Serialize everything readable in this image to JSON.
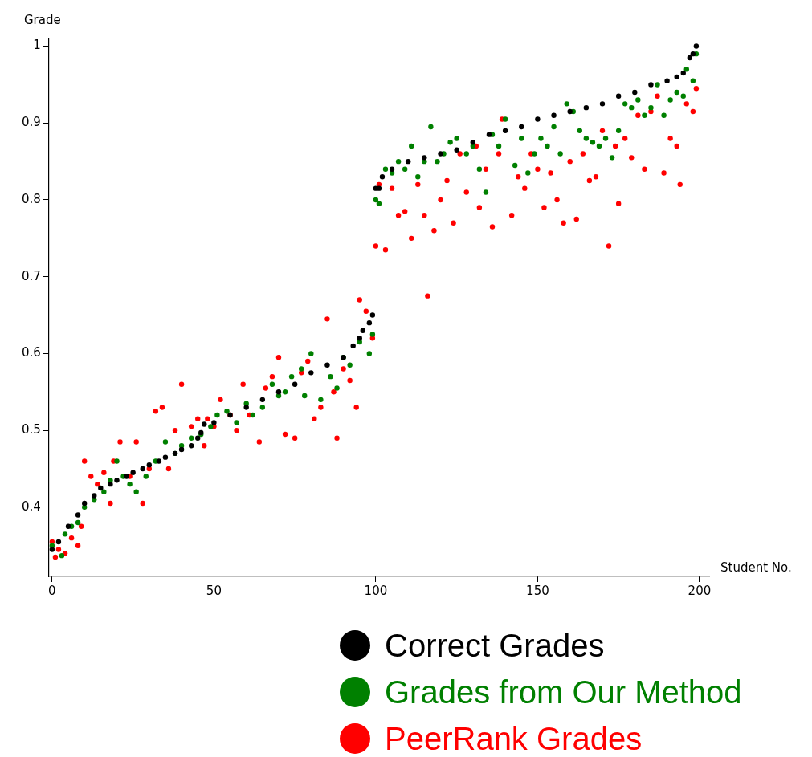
{
  "chart_data": {
    "type": "scatter",
    "xlabel": "Student No.",
    "ylabel": "Grade",
    "xlim": [
      -1,
      203
    ],
    "ylim": [
      0.31,
      1.01
    ],
    "xticks": [
      0,
      50,
      100,
      150,
      200
    ],
    "yticks": [
      0.4,
      0.5,
      0.6,
      0.7,
      0.8,
      0.9,
      1
    ],
    "grid": false,
    "legend": "bottom right",
    "marker": "circle",
    "series": [
      {
        "name": "Correct Grades",
        "color": "#000000",
        "x": [
          0,
          2,
          5,
          8,
          10,
          13,
          15,
          18,
          20,
          23,
          25,
          28,
          30,
          33,
          35,
          38,
          40,
          43,
          45,
          46,
          47,
          50,
          55,
          60,
          65,
          70,
          75,
          80,
          85,
          90,
          93,
          95,
          96,
          98,
          99,
          100,
          101,
          102,
          105,
          110,
          115,
          120,
          125,
          130,
          135,
          140,
          145,
          150,
          155,
          160,
          165,
          170,
          175,
          180,
          185,
          190,
          193,
          195,
          197,
          198,
          199
        ],
        "values": [
          0.345,
          0.355,
          0.375,
          0.39,
          0.405,
          0.415,
          0.425,
          0.43,
          0.435,
          0.44,
          0.445,
          0.45,
          0.455,
          0.46,
          0.465,
          0.47,
          0.475,
          0.48,
          0.49,
          0.497,
          0.508,
          0.51,
          0.52,
          0.53,
          0.54,
          0.55,
          0.56,
          0.575,
          0.585,
          0.595,
          0.61,
          0.62,
          0.63,
          0.64,
          0.65,
          0.815,
          0.815,
          0.83,
          0.84,
          0.85,
          0.855,
          0.86,
          0.865,
          0.875,
          0.885,
          0.89,
          0.895,
          0.905,
          0.91,
          0.915,
          0.92,
          0.925,
          0.935,
          0.94,
          0.95,
          0.955,
          0.96,
          0.965,
          0.985,
          0.99,
          1.0
        ]
      },
      {
        "name": "Grades from Our Method",
        "color": "#008000",
        "x": [
          0,
          3,
          4,
          6,
          8,
          10,
          13,
          16,
          18,
          20,
          22,
          24,
          26,
          29,
          32,
          35,
          38,
          40,
          43,
          46,
          49,
          51,
          54,
          57,
          60,
          62,
          65,
          68,
          70,
          72,
          74,
          77,
          78,
          80,
          83,
          86,
          88,
          90,
          92,
          95,
          98,
          99,
          100,
          101,
          103,
          105,
          107,
          109,
          111,
          113,
          115,
          117,
          119,
          121,
          123,
          125,
          128,
          130,
          132,
          134,
          136,
          138,
          140,
          143,
          145,
          147,
          149,
          151,
          153,
          155,
          157,
          159,
          161,
          163,
          165,
          167,
          169,
          171,
          173,
          175,
          177,
          179,
          181,
          183,
          185,
          187,
          189,
          191,
          193,
          195,
          196,
          198,
          199
        ],
        "values": [
          0.35,
          0.337,
          0.365,
          0.375,
          0.38,
          0.4,
          0.41,
          0.42,
          0.435,
          0.46,
          0.44,
          0.43,
          0.42,
          0.44,
          0.46,
          0.485,
          0.47,
          0.48,
          0.49,
          0.495,
          0.505,
          0.52,
          0.525,
          0.51,
          0.535,
          0.52,
          0.53,
          0.56,
          0.545,
          0.55,
          0.57,
          0.58,
          0.545,
          0.6,
          0.54,
          0.57,
          0.555,
          0.595,
          0.585,
          0.615,
          0.6,
          0.625,
          0.8,
          0.795,
          0.84,
          0.835,
          0.85,
          0.84,
          0.87,
          0.83,
          0.85,
          0.895,
          0.85,
          0.86,
          0.875,
          0.88,
          0.86,
          0.87,
          0.84,
          0.81,
          0.885,
          0.87,
          0.905,
          0.845,
          0.88,
          0.835,
          0.86,
          0.88,
          0.87,
          0.895,
          0.86,
          0.925,
          0.915,
          0.89,
          0.88,
          0.875,
          0.87,
          0.88,
          0.855,
          0.89,
          0.925,
          0.92,
          0.93,
          0.91,
          0.92,
          0.95,
          0.91,
          0.93,
          0.94,
          0.935,
          0.97,
          0.955,
          0.99
        ]
      },
      {
        "name": "PeerRank Grades",
        "color": "#ff0000",
        "x": [
          0,
          1,
          2,
          4,
          6,
          8,
          9,
          10,
          12,
          14,
          16,
          18,
          19,
          21,
          24,
          26,
          28,
          30,
          32,
          34,
          36,
          38,
          40,
          43,
          45,
          47,
          48,
          50,
          52,
          55,
          57,
          59,
          61,
          64,
          66,
          68,
          70,
          72,
          75,
          77,
          79,
          81,
          83,
          85,
          87,
          88,
          90,
          92,
          94,
          95,
          97,
          99,
          100,
          101,
          103,
          105,
          107,
          109,
          111,
          113,
          115,
          116,
          118,
          120,
          122,
          124,
          126,
          128,
          131,
          132,
          134,
          136,
          138,
          139,
          142,
          144,
          146,
          148,
          150,
          152,
          154,
          156,
          158,
          160,
          162,
          164,
          166,
          168,
          170,
          172,
          174,
          175,
          177,
          179,
          181,
          183,
          185,
          187,
          189,
          191,
          193,
          194,
          196,
          198,
          199
        ],
        "values": [
          0.355,
          0.335,
          0.345,
          0.34,
          0.36,
          0.35,
          0.375,
          0.46,
          0.44,
          0.43,
          0.445,
          0.405,
          0.46,
          0.485,
          0.44,
          0.485,
          0.405,
          0.45,
          0.525,
          0.53,
          0.45,
          0.5,
          0.56,
          0.505,
          0.515,
          0.48,
          0.515,
          0.505,
          0.54,
          0.52,
          0.5,
          0.56,
          0.52,
          0.485,
          0.555,
          0.57,
          0.595,
          0.495,
          0.49,
          0.575,
          0.59,
          0.515,
          0.53,
          0.645,
          0.55,
          0.49,
          0.58,
          0.565,
          0.53,
          0.67,
          0.655,
          0.62,
          0.74,
          0.82,
          0.735,
          0.815,
          0.78,
          0.785,
          0.75,
          0.82,
          0.78,
          0.675,
          0.76,
          0.8,
          0.825,
          0.77,
          0.86,
          0.81,
          0.87,
          0.79,
          0.84,
          0.765,
          0.86,
          0.905,
          0.78,
          0.83,
          0.815,
          0.86,
          0.84,
          0.79,
          0.835,
          0.8,
          0.77,
          0.85,
          0.775,
          0.86,
          0.825,
          0.83,
          0.89,
          0.74,
          0.87,
          0.795,
          0.88,
          0.855,
          0.91,
          0.84,
          0.915,
          0.935,
          0.835,
          0.88,
          0.87,
          0.82,
          0.925,
          0.915,
          0.945
        ]
      }
    ]
  }
}
